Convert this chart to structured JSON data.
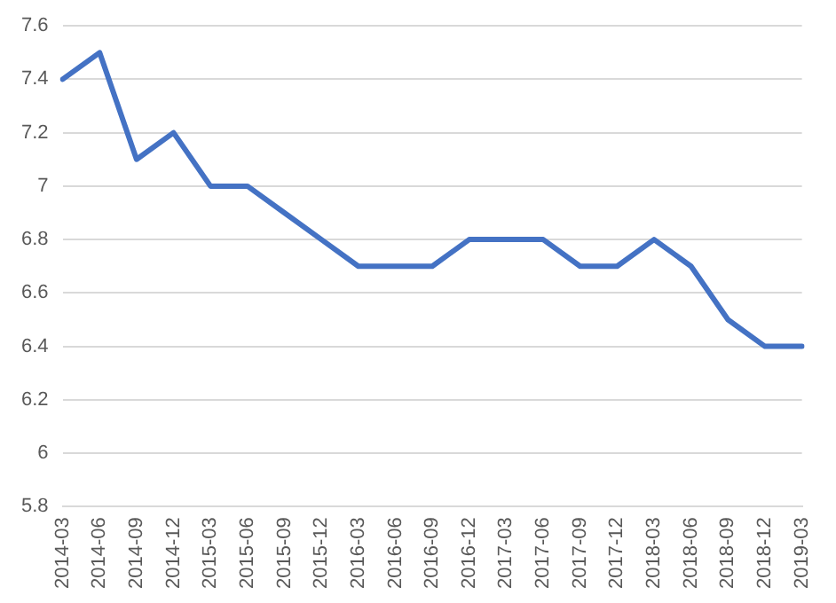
{
  "chart_data": {
    "type": "line",
    "categories": [
      "2014-03",
      "2014-06",
      "2014-09",
      "2014-12",
      "2015-03",
      "2015-06",
      "2015-09",
      "2015-12",
      "2016-03",
      "2016-06",
      "2016-09",
      "2016-12",
      "2017-03",
      "2017-06",
      "2017-09",
      "2017-12",
      "2018-03",
      "2018-06",
      "2018-09",
      "2018-12",
      "2019-03"
    ],
    "series": [
      {
        "color": "#4472c4",
        "values": [
          7.4,
          7.5,
          7.1,
          7.2,
          7.0,
          7.0,
          6.9,
          6.8,
          6.7,
          6.7,
          6.7,
          6.8,
          6.8,
          6.8,
          6.7,
          6.7,
          6.8,
          6.7,
          6.5,
          6.4,
          6.4
        ]
      }
    ],
    "ylim": [
      5.8,
      7.6
    ],
    "yticks": [
      5.8,
      6,
      6.2,
      6.4,
      6.6,
      6.8,
      7,
      7.2,
      7.4,
      7.6
    ],
    "grid": "y",
    "legend": false,
    "marker": "none",
    "line_style": "solid"
  }
}
